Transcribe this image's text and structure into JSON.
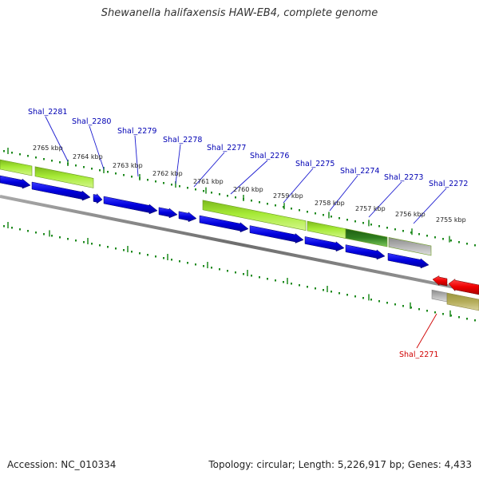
{
  "title": "Shewanella halifaxensis HAW-EB4, complete genome",
  "footer": {
    "accession": "Accession: NC_010334",
    "topology": "Topology: circular; Length: 5,226,917 bp; Genes: 4,433"
  },
  "colors": {
    "backbone": "#7a7a7a",
    "tick": "#1e8a1e",
    "forward_gene": "#0000dd",
    "reverse_gene": "#ee0000",
    "cds_feature": "#99e02a",
    "highlight_feature": "#2e7d1e",
    "other_feature": "#b4b4b4",
    "reverse_feature": "#b5ad5a",
    "label_forward": "#0000b4",
    "label_reverse": "#d00000"
  },
  "scale_labels": [
    "2765 kbp",
    "2764 kbp",
    "2763 kbp",
    "2762 kbp",
    "2761 kbp",
    "2760 kbp",
    "2759 kbp",
    "2758 kbp",
    "2757 kbp",
    "2756 kbp",
    "2755 kbp"
  ],
  "gene_labels": [
    {
      "name": "Shal_2281",
      "strand": "forward"
    },
    {
      "name": "Shal_2280",
      "strand": "forward"
    },
    {
      "name": "Shal_2279",
      "strand": "forward"
    },
    {
      "name": "Shal_2278",
      "strand": "forward"
    },
    {
      "name": "Shal_2277",
      "strand": "forward"
    },
    {
      "name": "Shal_2276",
      "strand": "forward"
    },
    {
      "name": "Shal_2275",
      "strand": "forward"
    },
    {
      "name": "Shal_2274",
      "strand": "forward"
    },
    {
      "name": "Shal_2273",
      "strand": "forward"
    },
    {
      "name": "Shal_2272",
      "strand": "forward"
    },
    {
      "name": "Shal_2271",
      "strand": "reverse"
    }
  ]
}
